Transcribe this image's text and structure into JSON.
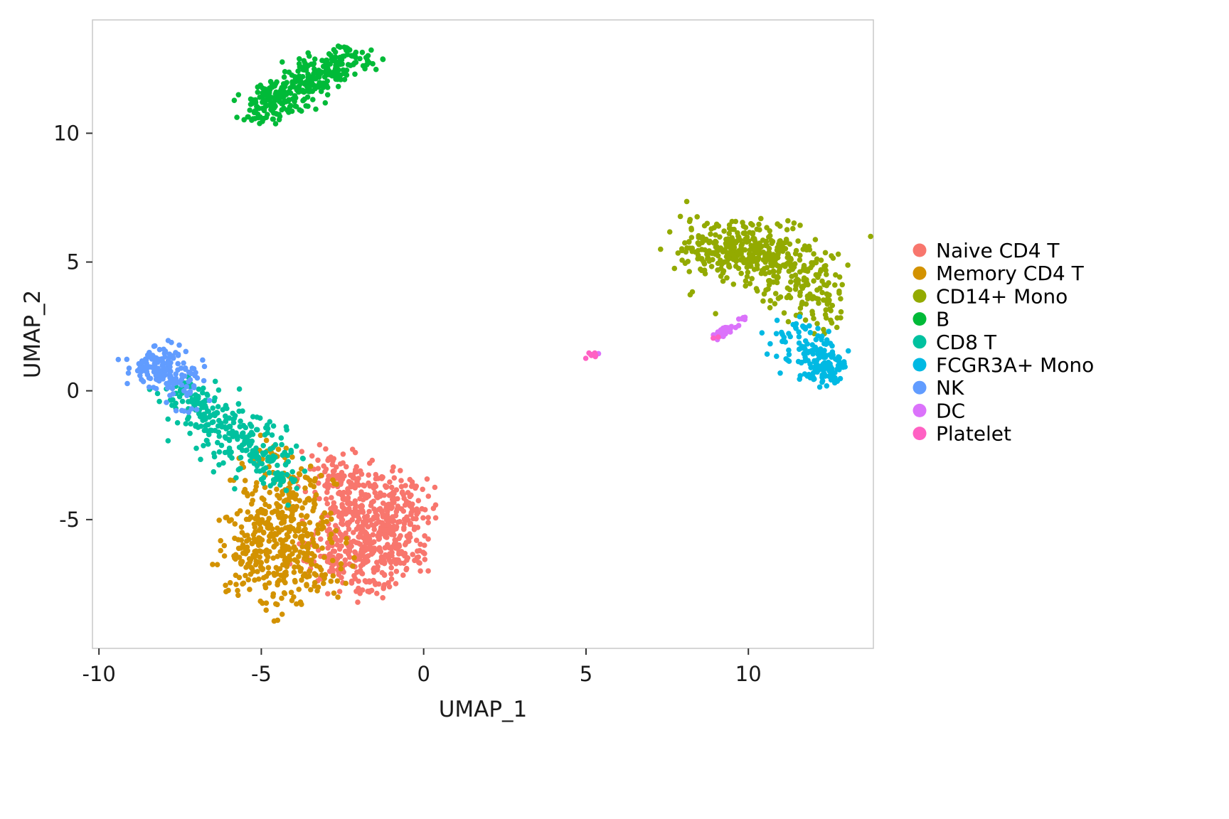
{
  "chart_data": {
    "type": "scatter",
    "title": "",
    "xlabel": "UMAP_1",
    "ylabel": "UMAP_2",
    "xlim": [
      -10.2,
      13.85
    ],
    "ylim": [
      -10.0,
      14.4
    ],
    "x_ticks": [
      -10,
      -5,
      0,
      5,
      10
    ],
    "y_ticks": [
      -5,
      0,
      5,
      10
    ],
    "grid": false,
    "legend_position": "right",
    "panel_border_color": "#c9c9c9",
    "axis_text_color": "#1a1a1a",
    "tick_color": "#333333",
    "point_radius": 3.8,
    "series": [
      {
        "name": "Naive CD4 T",
        "color": "#F8766D",
        "z": 1,
        "blobs": [
          [
            -1.9,
            -5.0,
            0.85,
            0.85,
            0,
            300
          ],
          [
            -1.2,
            -6.3,
            0.65,
            0.55,
            0,
            120
          ],
          [
            -2.6,
            -3.4,
            0.6,
            0.5,
            -20,
            90
          ],
          [
            -0.75,
            -4.3,
            0.5,
            0.6,
            0,
            80
          ],
          [
            -2.9,
            -6.8,
            0.55,
            0.45,
            0,
            50
          ],
          [
            -1.6,
            -7.6,
            0.5,
            0.3,
            0,
            30
          ]
        ]
      },
      {
        "name": "Memory CD4 T",
        "color": "#D39200",
        "z": 2,
        "blobs": [
          [
            -4.4,
            -5.3,
            0.8,
            0.9,
            10,
            240
          ],
          [
            -3.7,
            -6.9,
            0.65,
            0.55,
            0,
            80
          ],
          [
            -5.3,
            -6.6,
            0.5,
            0.5,
            0,
            55
          ],
          [
            -4.0,
            -3.7,
            0.55,
            0.5,
            0,
            55
          ],
          [
            -4.9,
            -2.7,
            0.55,
            0.5,
            0,
            25
          ],
          [
            -4.3,
            -8.1,
            0.55,
            0.35,
            0,
            25
          ],
          [
            -5.9,
            -7.6,
            0.3,
            0.25,
            0,
            10
          ]
        ]
      },
      {
        "name": "CD14+ Mono",
        "color": "#93AA00",
        "z": 6,
        "blobs": [
          [
            9.4,
            5.5,
            0.8,
            0.55,
            -12,
            170
          ],
          [
            10.6,
            5.3,
            0.75,
            0.6,
            -25,
            140
          ],
          [
            11.7,
            4.3,
            0.6,
            0.7,
            -20,
            90
          ],
          [
            12.3,
            3.3,
            0.35,
            0.45,
            0,
            35
          ],
          [
            10.4,
            4.9,
            1.3,
            0.95,
            -20,
            45
          ],
          [
            8.3,
            5.3,
            0.4,
            0.35,
            0,
            20
          ]
        ]
      },
      {
        "name": "B",
        "color": "#00BA38",
        "z": 5,
        "blobs": [
          [
            -4.7,
            11.2,
            0.5,
            0.33,
            33,
            130
          ],
          [
            -3.5,
            12.1,
            0.6,
            0.38,
            30,
            130
          ],
          [
            -2.5,
            12.7,
            0.5,
            0.28,
            25,
            80
          ],
          [
            -3.8,
            11.7,
            0.8,
            0.5,
            32,
            20
          ]
        ]
      },
      {
        "name": "CD8 T",
        "color": "#00C19F",
        "z": 3,
        "blobs": [
          [
            -6.9,
            -0.5,
            0.5,
            0.45,
            -35,
            70
          ],
          [
            -6.1,
            -1.4,
            0.55,
            0.5,
            -35,
            75
          ],
          [
            -5.3,
            -2.3,
            0.6,
            0.5,
            -30,
            75
          ],
          [
            -4.6,
            -3.0,
            0.5,
            0.45,
            -30,
            45
          ],
          [
            -5.6,
            -1.6,
            1.0,
            0.85,
            -30,
            25
          ],
          [
            -7.6,
            -0.2,
            0.35,
            0.3,
            0,
            15
          ]
        ]
      },
      {
        "name": "FCGR3A+ Mono",
        "color": "#00B9E3",
        "z": 7,
        "blobs": [
          [
            12.35,
            0.95,
            0.38,
            0.3,
            25,
            85
          ],
          [
            11.8,
            1.6,
            0.5,
            0.4,
            30,
            55
          ],
          [
            11.3,
            2.2,
            0.35,
            0.28,
            30,
            20
          ],
          [
            12.6,
            0.6,
            0.2,
            0.18,
            0,
            15
          ]
        ]
      },
      {
        "name": "NK",
        "color": "#619CFF",
        "z": 4,
        "blobs": [
          [
            -8.2,
            0.85,
            0.45,
            0.35,
            25,
            95
          ],
          [
            -7.5,
            0.45,
            0.4,
            0.32,
            25,
            40
          ],
          [
            -7.9,
            1.3,
            0.35,
            0.25,
            20,
            20
          ],
          [
            -7.1,
            -0.4,
            0.4,
            0.35,
            0,
            8
          ]
        ]
      },
      {
        "name": "DC",
        "color": "#DB72FB",
        "z": 8,
        "blobs": [
          [
            9.35,
            2.4,
            0.34,
            0.07,
            40,
            30
          ],
          [
            9.85,
            2.85,
            0.08,
            0.06,
            0,
            3
          ],
          [
            5.3,
            1.45,
            0.06,
            0.05,
            0,
            2
          ]
        ]
      },
      {
        "name": "Platelet",
        "color": "#FF61C3",
        "z": 9,
        "blobs": [
          [
            5.2,
            1.38,
            0.1,
            0.06,
            0,
            8
          ],
          [
            8.95,
            2.05,
            0.05,
            0.04,
            0,
            2
          ]
        ]
      }
    ],
    "legend": {
      "labels": [
        "Naive CD4 T",
        "Memory CD4 T",
        "CD14+ Mono",
        "B",
        "CD8 T",
        "FCGR3A+ Mono",
        "NK",
        "DC",
        "Platelet"
      ]
    }
  }
}
